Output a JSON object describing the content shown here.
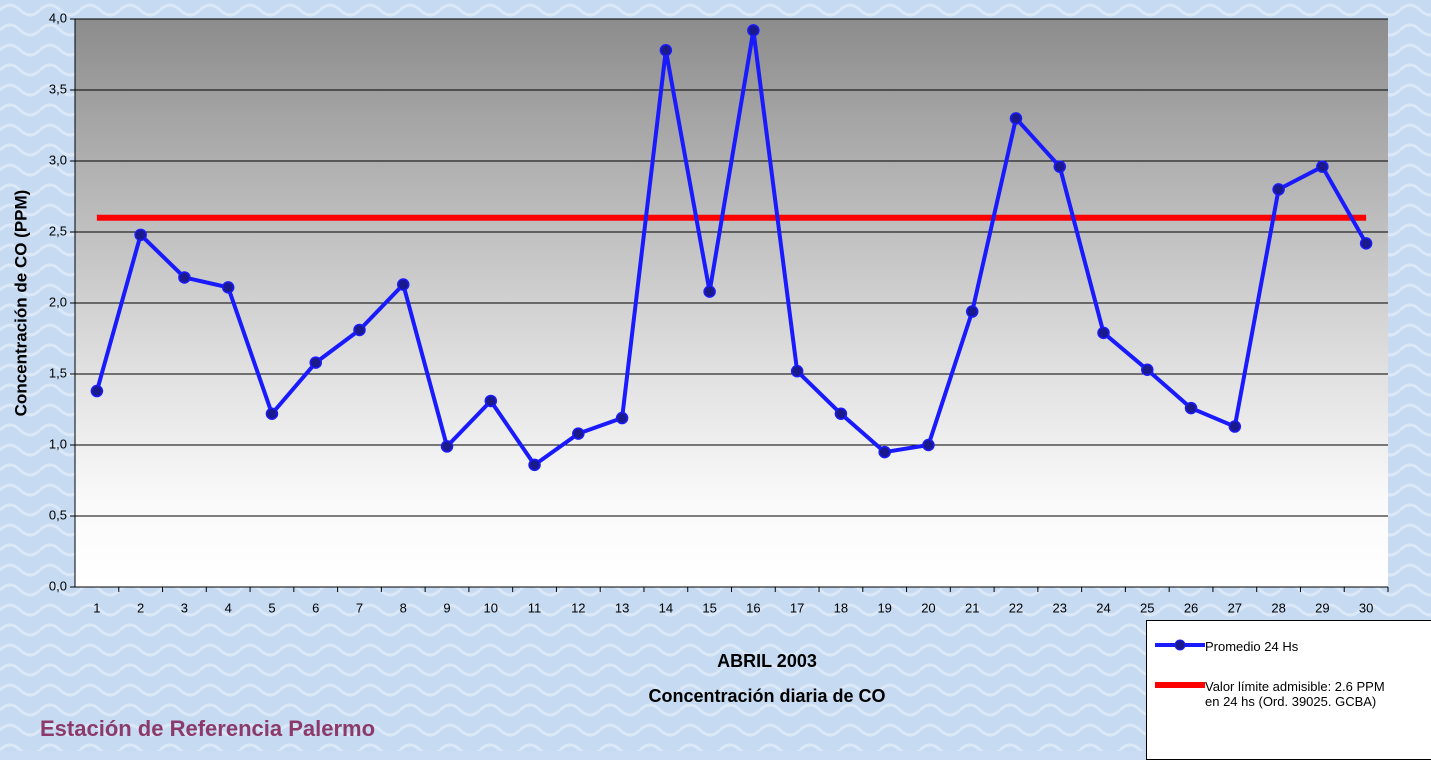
{
  "chart_data": {
    "type": "line",
    "title": "ABRIL 2003",
    "subtitle": "Concentración diaria de CO",
    "annotation": "Estación de Referencia Palermo",
    "y_label": "Concentración de CO (PPM)",
    "categories": [
      "1",
      "2",
      "3",
      "4",
      "5",
      "6",
      "7",
      "8",
      "9",
      "10",
      "11",
      "12",
      "13",
      "14",
      "15",
      "16",
      "17",
      "18",
      "19",
      "20",
      "21",
      "22",
      "23",
      "24",
      "25",
      "26",
      "27",
      "28",
      "29",
      "30"
    ],
    "series": [
      {
        "name": "Promedio 24 Hs",
        "color": "#1a1aff",
        "marker": true,
        "values": [
          1.38,
          2.48,
          2.18,
          2.11,
          1.22,
          1.58,
          1.81,
          2.13,
          0.99,
          1.31,
          0.86,
          1.08,
          1.19,
          3.78,
          2.08,
          3.92,
          1.52,
          1.22,
          0.95,
          1.0,
          1.94,
          3.3,
          2.96,
          1.79,
          1.53,
          1.26,
          1.13,
          2.8,
          2.96,
          2.42
        ]
      },
      {
        "name": "Valor límite admisible: 2.6 PPM en 24 hs (Ord. 39025. GCBA)",
        "color": "#ff0000",
        "marker": false,
        "values": [
          2.6,
          2.6,
          2.6,
          2.6,
          2.6,
          2.6,
          2.6,
          2.6,
          2.6,
          2.6,
          2.6,
          2.6,
          2.6,
          2.6,
          2.6,
          2.6,
          2.6,
          2.6,
          2.6,
          2.6,
          2.6,
          2.6,
          2.6,
          2.6,
          2.6,
          2.6,
          2.6,
          2.6,
          2.6,
          2.6
        ]
      }
    ],
    "ylim": [
      0,
      4
    ],
    "yticks": [
      {
        "value": 0,
        "label": "0,0"
      },
      {
        "value": 0.5,
        "label": "0,5"
      },
      {
        "value": 1,
        "label": "1,0"
      },
      {
        "value": 1.5,
        "label": "1,5"
      },
      {
        "value": 2,
        "label": "2,0"
      },
      {
        "value": 2.5,
        "label": "2,5"
      },
      {
        "value": 3,
        "label": "3,0"
      },
      {
        "value": 3.5,
        "label": "3,5"
      },
      {
        "value": 4,
        "label": "4,0"
      }
    ],
    "grid": true
  }
}
